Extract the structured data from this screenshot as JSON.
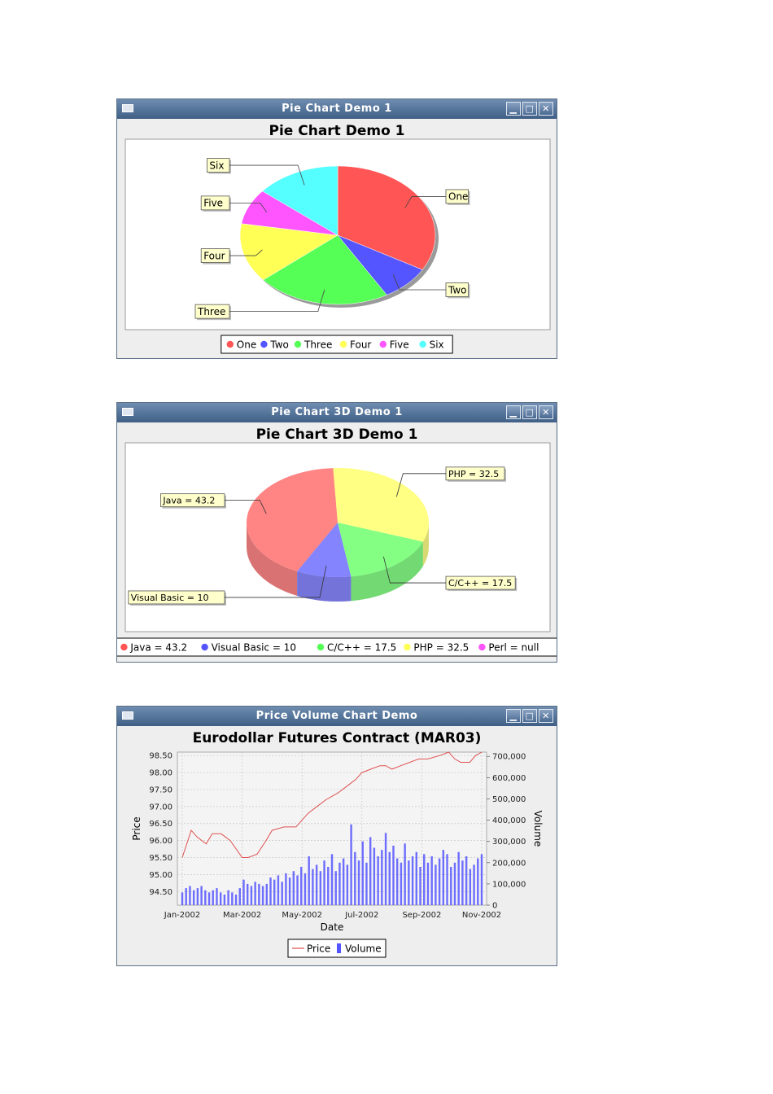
{
  "windows": [
    {
      "title": "Pie Chart Demo 1",
      "buttons": [
        "minimize-icon",
        "maximize-icon",
        "close-icon"
      ],
      "chart_data": {
        "type": "pie",
        "title": "Pie Chart Demo 1",
        "slices": [
          {
            "label": "One",
            "value": 33.3,
            "color": "#ff5555"
          },
          {
            "label": "Two",
            "value": 8.3,
            "color": "#5555ff"
          },
          {
            "label": "Three",
            "value": 22.2,
            "color": "#55ff55"
          },
          {
            "label": "Four",
            "value": 13.9,
            "color": "#ffff55"
          },
          {
            "label": "Five",
            "value": 8.3,
            "color": "#ff55ff"
          },
          {
            "label": "Six",
            "value": 14.0,
            "color": "#55ffff"
          }
        ],
        "legend": [
          "One",
          "Two",
          "Three",
          "Four",
          "Five",
          "Six"
        ],
        "legend_position": "bottom"
      }
    },
    {
      "title": "Pie Chart 3D Demo 1",
      "buttons": [
        "minimize-icon",
        "maximize-icon",
        "close-icon"
      ],
      "chart_data": {
        "type": "pie",
        "title": "Pie Chart 3D Demo 1",
        "style": "3d-transparent",
        "slices": [
          {
            "label": "Java = 43.2",
            "name": "Java",
            "value": 43.2,
            "color": "#ff5555"
          },
          {
            "label": "Visual Basic = 10",
            "name": "Visual Basic",
            "value": 10,
            "color": "#5555ff"
          },
          {
            "label": "C/C++ = 17.5",
            "name": "C/C++",
            "value": 17.5,
            "color": "#55ff55"
          },
          {
            "label": "PHP = 32.5",
            "name": "PHP",
            "value": 32.5,
            "color": "#ffff55"
          },
          {
            "label": "Perl = null",
            "name": "Perl",
            "value": null,
            "color": "#ff55ff"
          }
        ],
        "legend": [
          "Java = 43.2",
          "Visual Basic = 10",
          "C/C++ = 17.5",
          "PHP = 32.5",
          "Perl = null"
        ],
        "legend_position": "bottom"
      }
    },
    {
      "title": "Price Volume Chart Demo",
      "buttons": [
        "minimize-icon",
        "maximize-icon",
        "close-icon"
      ],
      "chart_data": {
        "type": "line",
        "title": "Eurodollar Futures Contract (MAR03)",
        "xlabel": "Date",
        "ylabel": "Price",
        "y2label": "Volume",
        "x_ticks": [
          "Jan-2002",
          "Mar-2002",
          "May-2002",
          "Jul-2002",
          "Sep-2002",
          "Nov-2002"
        ],
        "y_ticks": [
          "94.50",
          "95.00",
          "95.50",
          "96.00",
          "96.50",
          "97.00",
          "97.50",
          "98.00",
          "98.50"
        ],
        "y2_ticks": [
          "0",
          "100,000",
          "200,000",
          "300,000",
          "400,000",
          "500,000",
          "600,000",
          "700,000"
        ],
        "ylim": [
          94.1,
          98.6
        ],
        "y2lim": [
          0,
          720000
        ],
        "grid": true,
        "legend": [
          "Price",
          "Volume"
        ],
        "legend_position": "bottom",
        "series": [
          {
            "name": "Price",
            "type": "line",
            "color": "#e05050",
            "x_months": [
              0,
              0.3,
              0.5,
              0.8,
              1.0,
              1.3,
              1.6,
              2.0,
              2.2,
              2.5,
              2.8,
              3.0,
              3.4,
              3.8,
              4.2,
              4.5,
              4.8,
              5.2,
              5.5,
              5.8,
              6.0,
              6.3,
              6.6,
              6.8,
              7.0,
              7.3,
              7.6,
              7.9,
              8.2,
              8.6,
              8.9,
              9.1,
              9.3,
              9.6,
              9.8,
              10.0
            ],
            "values": [
              95.5,
              96.3,
              96.1,
              95.9,
              96.2,
              96.2,
              96.0,
              95.5,
              95.5,
              95.6,
              96.0,
              96.3,
              96.4,
              96.4,
              96.8,
              97.0,
              97.2,
              97.4,
              97.6,
              97.8,
              98.0,
              98.1,
              98.2,
              98.2,
              98.1,
              98.2,
              98.3,
              98.4,
              98.4,
              98.5,
              98.6,
              98.4,
              98.3,
              98.3,
              98.5,
              98.6
            ]
          },
          {
            "name": "Volume",
            "type": "bar",
            "color": "#5555ff",
            "values": [
              60000,
              80000,
              90000,
              70000,
              80000,
              90000,
              70000,
              60000,
              70000,
              80000,
              60000,
              50000,
              70000,
              60000,
              50000,
              80000,
              120000,
              100000,
              90000,
              110000,
              100000,
              90000,
              100000,
              130000,
              120000,
              140000,
              110000,
              150000,
              130000,
              160000,
              140000,
              180000,
              150000,
              230000,
              170000,
              190000,
              160000,
              210000,
              180000,
              240000,
              160000,
              200000,
              220000,
              190000,
              380000,
              250000,
              210000,
              300000,
              200000,
              320000,
              270000,
              230000,
              260000,
              340000,
              250000,
              280000,
              220000,
              200000,
              290000,
              210000,
              230000,
              250000,
              180000,
              240000,
              200000,
              230000,
              190000,
              220000,
              260000,
              240000,
              180000,
              200000,
              250000,
              210000,
              230000,
              170000,
              190000,
              220000,
              240000
            ]
          }
        ]
      }
    }
  ]
}
